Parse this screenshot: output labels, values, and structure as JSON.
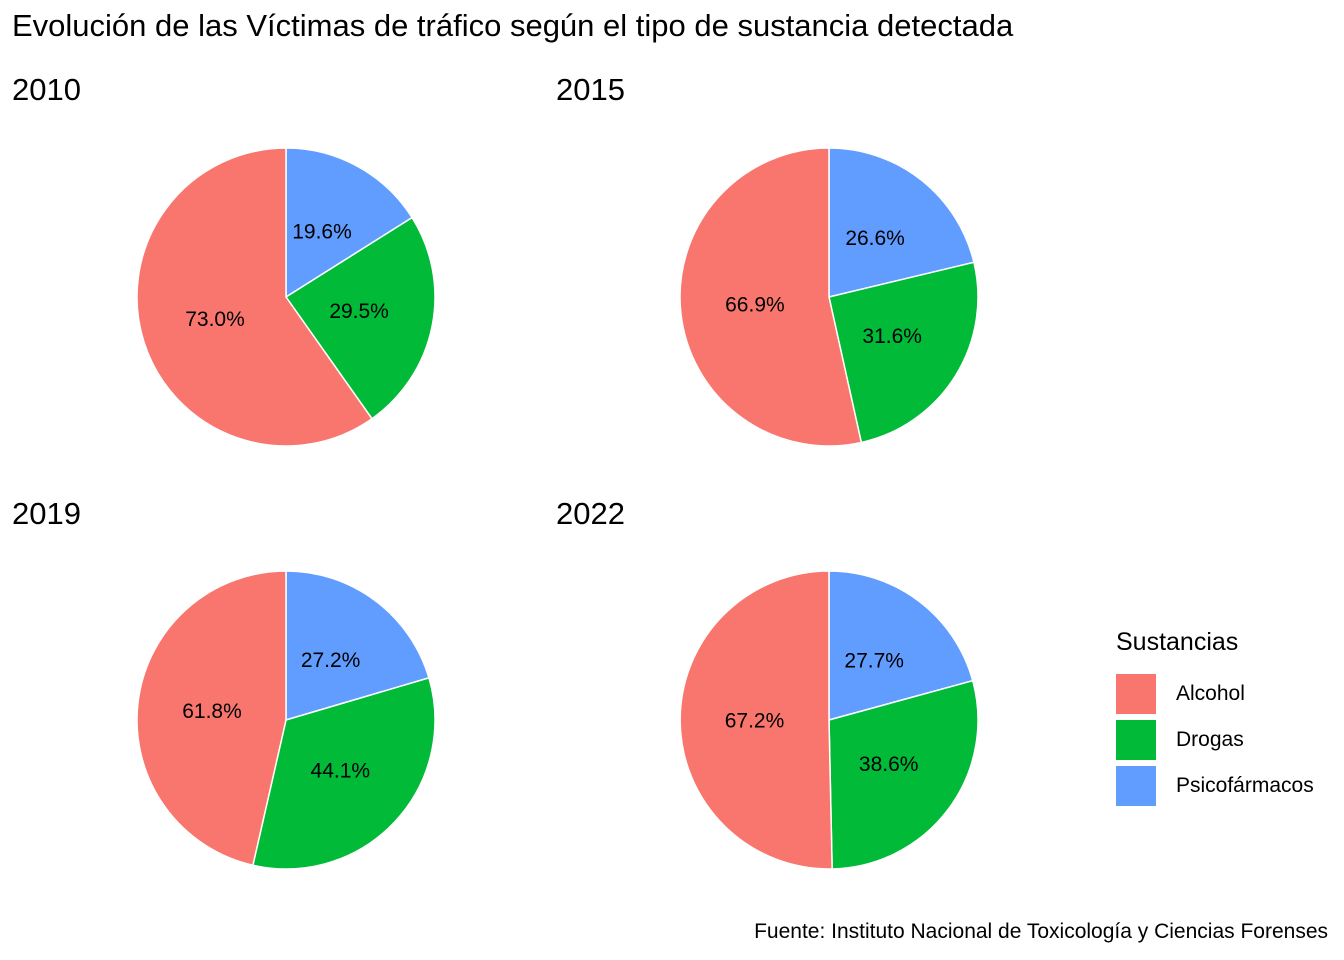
{
  "chart_data": {
    "type": "pie",
    "title": "Evolución de las Víctimas de tráfico según el tipo de sustancia detectada",
    "caption": "Fuente: Instituto Nacional de Toxicología y Ciencias Forenses",
    "legend": {
      "title": "Sustancias",
      "position": "right",
      "entries": [
        {
          "name": "Alcohol",
          "color": "#F8766D"
        },
        {
          "name": "Drogas",
          "color": "#00BA38"
        },
        {
          "name": "Psicofármacos",
          "color": "#619CFF"
        }
      ]
    },
    "facets": [
      {
        "year": "2010",
        "slices": [
          {
            "category": "Alcohol",
            "value": 73.0,
            "label": "73.0%"
          },
          {
            "category": "Drogas",
            "value": 29.5,
            "label": "29.5%"
          },
          {
            "category": "Psicofármacos",
            "value": 19.6,
            "label": "19.6%"
          }
        ]
      },
      {
        "year": "2015",
        "slices": [
          {
            "category": "Alcohol",
            "value": 66.9,
            "label": "66.9%"
          },
          {
            "category": "Drogas",
            "value": 31.6,
            "label": "31.6%"
          },
          {
            "category": "Psicofármacos",
            "value": 26.6,
            "label": "26.6%"
          }
        ]
      },
      {
        "year": "2019",
        "slices": [
          {
            "category": "Alcohol",
            "value": 61.8,
            "label": "61.8%"
          },
          {
            "category": "Drogas",
            "value": 44.1,
            "label": "44.1%"
          },
          {
            "category": "Psicofármacos",
            "value": 27.2,
            "label": "27.2%"
          }
        ]
      },
      {
        "year": "2022",
        "slices": [
          {
            "category": "Alcohol",
            "value": 67.2,
            "label": "67.2%"
          },
          {
            "category": "Drogas",
            "value": 38.6,
            "label": "38.6%"
          },
          {
            "category": "Psicofármacos",
            "value": 27.7,
            "label": "27.7%"
          }
        ]
      }
    ]
  }
}
